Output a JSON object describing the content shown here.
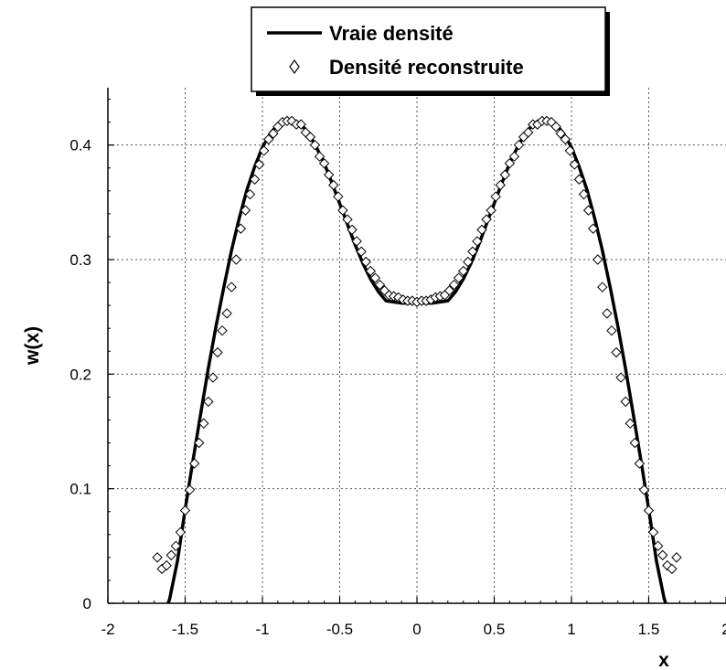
{
  "chart_data": {
    "type": "line",
    "xlabel": "x",
    "ylabel": "w(x)",
    "xlim": [
      -2,
      2
    ],
    "ylim": [
      0,
      0.45
    ],
    "x_ticks": [
      -2,
      -1.5,
      -1,
      -0.5,
      0,
      0.5,
      1,
      1.5,
      2
    ],
    "x_tick_labels": [
      "-2",
      "-1.5",
      "-1",
      "-0.5",
      "0",
      "0.5",
      "1",
      "1.5",
      "2"
    ],
    "y_ticks": [
      0,
      0.1,
      0.2,
      0.3,
      0.4
    ],
    "y_tick_labels": [
      "0",
      "0.1",
      "0.2",
      "0.3",
      "0.4"
    ],
    "grid": true,
    "legend_position": "top-center",
    "series": [
      {
        "name": "Vraie densité",
        "style": "line",
        "color": "#000000",
        "x": [
          -1.61,
          -1.6,
          -1.55,
          -1.5,
          -1.45,
          -1.4,
          -1.35,
          -1.3,
          -1.25,
          -1.2,
          -1.15,
          -1.1,
          -1.05,
          -1.0,
          -0.95,
          -0.9,
          -0.85,
          -0.8,
          -0.75,
          -0.7,
          -0.65,
          -0.6,
          -0.55,
          -0.5,
          -0.45,
          -0.4,
          -0.35,
          -0.3,
          -0.25,
          -0.2,
          -0.15,
          -0.1,
          -0.05,
          0.0,
          0.05,
          0.1,
          0.15,
          0.2,
          0.25,
          0.3,
          0.35,
          0.4,
          0.45,
          0.5,
          0.55,
          0.6,
          0.65,
          0.7,
          0.75,
          0.8,
          0.85,
          0.9,
          0.95,
          1.0,
          1.05,
          1.1,
          1.15,
          1.2,
          1.25,
          1.3,
          1.35,
          1.4,
          1.45,
          1.5,
          1.55,
          1.6,
          1.61
        ],
        "y": [
          0.0,
          0.004,
          0.037,
          0.082,
          0.124,
          0.165,
          0.205,
          0.242,
          0.276,
          0.308,
          0.336,
          0.361,
          0.381,
          0.398,
          0.41,
          0.418,
          0.422,
          0.422,
          0.418,
          0.41,
          0.398,
          0.384,
          0.367,
          0.349,
          0.331,
          0.313,
          0.297,
          0.283,
          0.272,
          0.264,
          0.263,
          0.262,
          0.262,
          0.263,
          0.262,
          0.262,
          0.263,
          0.264,
          0.272,
          0.283,
          0.297,
          0.313,
          0.331,
          0.349,
          0.367,
          0.384,
          0.398,
          0.41,
          0.418,
          0.422,
          0.422,
          0.418,
          0.41,
          0.398,
          0.381,
          0.361,
          0.336,
          0.308,
          0.276,
          0.242,
          0.205,
          0.165,
          0.124,
          0.082,
          0.037,
          0.004,
          0.0
        ]
      },
      {
        "name": "Densité reconstruite",
        "style": "markers",
        "marker": "diamond",
        "color": "#000000",
        "x": [
          -1.68,
          -1.65,
          -1.62,
          -1.59,
          -1.56,
          -1.53,
          -1.5,
          -1.47,
          -1.44,
          -1.41,
          -1.38,
          -1.35,
          -1.32,
          -1.29,
          -1.26,
          -1.23,
          -1.2,
          -1.17,
          -1.14,
          -1.11,
          -1.08,
          -1.05,
          -1.02,
          -0.99,
          -0.96,
          -0.93,
          -0.9,
          -0.87,
          -0.84,
          -0.81,
          -0.78,
          -0.75,
          -0.72,
          -0.69,
          -0.66,
          -0.63,
          -0.6,
          -0.57,
          -0.54,
          -0.51,
          -0.48,
          -0.45,
          -0.42,
          -0.39,
          -0.36,
          -0.33,
          -0.3,
          -0.27,
          -0.24,
          -0.21,
          -0.18,
          -0.15,
          -0.12,
          -0.09,
          -0.06,
          -0.03,
          0.0,
          0.03,
          0.06,
          0.09,
          0.12,
          0.15,
          0.18,
          0.21,
          0.24,
          0.27,
          0.3,
          0.33,
          0.36,
          0.39,
          0.42,
          0.45,
          0.48,
          0.51,
          0.54,
          0.57,
          0.6,
          0.63,
          0.66,
          0.69,
          0.72,
          0.75,
          0.78,
          0.81,
          0.84,
          0.87,
          0.9,
          0.93,
          0.96,
          0.99,
          1.02,
          1.05,
          1.08,
          1.11,
          1.14,
          1.17,
          1.2,
          1.23,
          1.26,
          1.29,
          1.32,
          1.35,
          1.38,
          1.41,
          1.44,
          1.47,
          1.5,
          1.53,
          1.56,
          1.59,
          1.62,
          1.65,
          1.68
        ],
        "y": [
          0.04,
          0.03,
          0.033,
          0.042,
          0.05,
          0.062,
          0.081,
          0.099,
          0.122,
          0.14,
          0.157,
          0.176,
          0.197,
          0.219,
          0.238,
          0.253,
          0.276,
          0.3,
          0.327,
          0.343,
          0.357,
          0.37,
          0.383,
          0.395,
          0.405,
          0.41,
          0.416,
          0.42,
          0.421,
          0.421,
          0.418,
          0.418,
          0.411,
          0.407,
          0.4,
          0.39,
          0.384,
          0.374,
          0.365,
          0.355,
          0.343,
          0.335,
          0.326,
          0.316,
          0.307,
          0.298,
          0.29,
          0.284,
          0.278,
          0.273,
          0.269,
          0.268,
          0.267,
          0.265,
          0.264,
          0.264,
          0.263,
          0.264,
          0.264,
          0.265,
          0.267,
          0.268,
          0.269,
          0.273,
          0.278,
          0.284,
          0.29,
          0.298,
          0.307,
          0.316,
          0.326,
          0.335,
          0.343,
          0.355,
          0.365,
          0.374,
          0.384,
          0.39,
          0.4,
          0.407,
          0.411,
          0.418,
          0.418,
          0.421,
          0.421,
          0.42,
          0.416,
          0.41,
          0.405,
          0.395,
          0.383,
          0.37,
          0.357,
          0.343,
          0.327,
          0.3,
          0.276,
          0.253,
          0.238,
          0.219,
          0.197,
          0.176,
          0.157,
          0.14,
          0.122,
          0.099,
          0.081,
          0.062,
          0.05,
          0.042,
          0.033,
          0.03,
          0.04
        ]
      }
    ]
  }
}
